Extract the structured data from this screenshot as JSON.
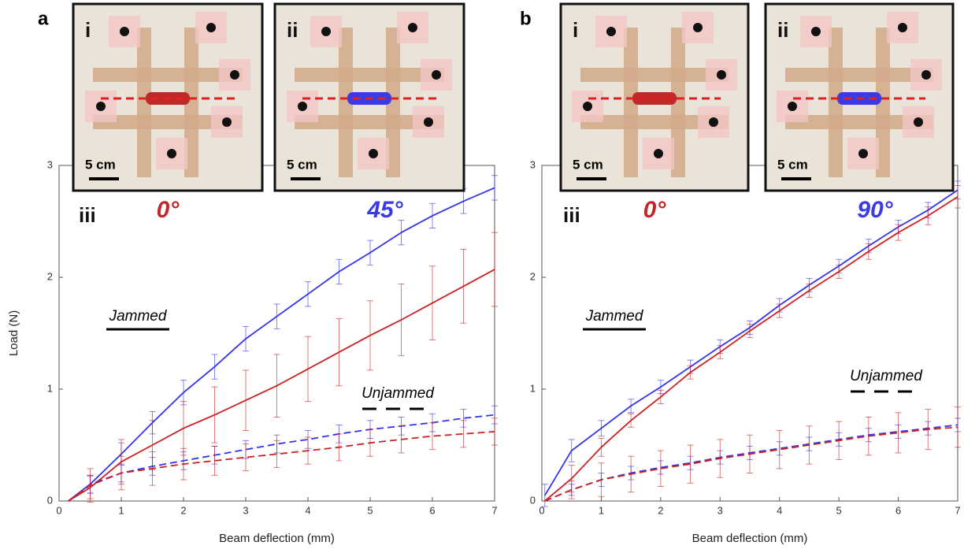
{
  "chart_data": [
    {
      "type": "line",
      "panel": "a",
      "y_label": "Load (N)",
      "x_label": "Beam deflection (mm)",
      "sublabel": "iii",
      "insets": [
        {
          "label": "i",
          "scale": "5 cm",
          "angle": "0°",
          "color": "#c0282a"
        },
        {
          "label": "ii",
          "scale": "5 cm",
          "angle": "45°",
          "color": "#3a3ae6"
        }
      ],
      "notes": [
        {
          "text": "Jammed",
          "dash": false
        },
        {
          "text": "Unjammed",
          "dash": true
        }
      ],
      "xlim": [
        0,
        7
      ],
      "ylim": [
        0,
        3
      ],
      "xticks": [
        0,
        1,
        2,
        3,
        4,
        5,
        6,
        7
      ],
      "yticks": [
        0,
        1,
        2,
        3
      ],
      "x": [
        0.15,
        0.5,
        1,
        1.5,
        2,
        2.5,
        3,
        3.5,
        4,
        4.5,
        5,
        5.5,
        6,
        6.5,
        7
      ],
      "series": [
        {
          "color": "#3333ee",
          "dash": false,
          "values": [
            0,
            0.15,
            0.42,
            0.7,
            0.97,
            1.2,
            1.45,
            1.65,
            1.85,
            2.05,
            2.22,
            2.4,
            2.55,
            2.68,
            2.8
          ],
          "errors": [
            0,
            0.08,
            0.1,
            0.1,
            0.11,
            0.11,
            0.11,
            0.11,
            0.11,
            0.11,
            0.11,
            0.11,
            0.11,
            0.11,
            0.11
          ]
        },
        {
          "color": "#cc2222",
          "dash": false,
          "values": [
            0,
            0.12,
            0.35,
            0.5,
            0.65,
            0.77,
            0.9,
            1.03,
            1.18,
            1.33,
            1.48,
            1.62,
            1.77,
            1.92,
            2.07
          ],
          "errors": [
            0,
            0.1,
            0.2,
            0.22,
            0.24,
            0.25,
            0.27,
            0.28,
            0.29,
            0.3,
            0.31,
            0.32,
            0.33,
            0.33,
            0.33
          ]
        },
        {
          "color": "#3333ee",
          "dash": true,
          "values": [
            0,
            0.15,
            0.25,
            0.31,
            0.36,
            0.41,
            0.46,
            0.51,
            0.55,
            0.6,
            0.64,
            0.67,
            0.7,
            0.74,
            0.77
          ],
          "errors": [
            0,
            0.08,
            0.08,
            0.08,
            0.08,
            0.08,
            0.08,
            0.08,
            0.08,
            0.08,
            0.08,
            0.08,
            0.08,
            0.08,
            0.08
          ]
        },
        {
          "color": "#cc2222",
          "dash": true,
          "values": [
            0,
            0.14,
            0.25,
            0.29,
            0.33,
            0.36,
            0.39,
            0.42,
            0.45,
            0.48,
            0.52,
            0.55,
            0.58,
            0.6,
            0.62
          ],
          "errors": [
            0,
            0.15,
            0.15,
            0.15,
            0.14,
            0.13,
            0.12,
            0.12,
            0.12,
            0.12,
            0.12,
            0.12,
            0.12,
            0.12,
            0.12
          ]
        }
      ]
    },
    {
      "type": "line",
      "panel": "b",
      "x_label": "Beam deflection (mm)",
      "sublabel": "iii",
      "insets": [
        {
          "label": "i",
          "scale": "5 cm",
          "angle": "0°",
          "color": "#c0282a"
        },
        {
          "label": "ii",
          "scale": "5 cm",
          "angle": "90°",
          "color": "#3a3ae6"
        }
      ],
      "notes": [
        {
          "text": "Jammed",
          "dash": false
        },
        {
          "text": "Unjammed",
          "dash": true
        }
      ],
      "xlim": [
        0,
        7
      ],
      "ylim": [
        0,
        3
      ],
      "xticks": [
        0,
        1,
        2,
        3,
        4,
        5,
        6,
        7
      ],
      "yticks": [
        0,
        1,
        2,
        3
      ],
      "x": [
        0.05,
        0.5,
        1,
        1.5,
        2,
        2.5,
        3,
        3.5,
        4,
        4.5,
        5,
        5.5,
        6,
        6.5,
        7
      ],
      "series": [
        {
          "color": "#3333ee",
          "dash": false,
          "values": [
            0.05,
            0.45,
            0.65,
            0.85,
            1.02,
            1.2,
            1.38,
            1.55,
            1.75,
            1.93,
            2.1,
            2.28,
            2.45,
            2.6,
            2.78
          ],
          "errors": [
            0.1,
            0.1,
            0.07,
            0.06,
            0.06,
            0.06,
            0.06,
            0.06,
            0.06,
            0.06,
            0.06,
            0.06,
            0.06,
            0.07,
            0.08
          ]
        },
        {
          "color": "#cc2222",
          "dash": false,
          "values": [
            0,
            0.2,
            0.48,
            0.72,
            0.93,
            1.15,
            1.33,
            1.52,
            1.7,
            1.88,
            2.05,
            2.23,
            2.4,
            2.55,
            2.72
          ],
          "errors": [
            0,
            0.12,
            0.08,
            0.06,
            0.06,
            0.06,
            0.06,
            0.06,
            0.06,
            0.06,
            0.06,
            0.07,
            0.07,
            0.08,
            0.1
          ]
        },
        {
          "color": "#3333ee",
          "dash": true,
          "values": [
            0,
            0.1,
            0.19,
            0.25,
            0.3,
            0.34,
            0.39,
            0.43,
            0.47,
            0.51,
            0.55,
            0.59,
            0.62,
            0.65,
            0.68
          ],
          "errors": [
            0,
            0.05,
            0.06,
            0.06,
            0.06,
            0.06,
            0.06,
            0.06,
            0.06,
            0.06,
            0.06,
            0.06,
            0.06,
            0.06,
            0.06
          ]
        },
        {
          "color": "#cc2222",
          "dash": true,
          "values": [
            0,
            0.1,
            0.19,
            0.24,
            0.29,
            0.33,
            0.38,
            0.42,
            0.46,
            0.5,
            0.54,
            0.58,
            0.61,
            0.64,
            0.66
          ],
          "errors": [
            0,
            0.08,
            0.15,
            0.16,
            0.16,
            0.17,
            0.17,
            0.17,
            0.17,
            0.17,
            0.17,
            0.17,
            0.18,
            0.18,
            0.18
          ]
        }
      ]
    }
  ]
}
